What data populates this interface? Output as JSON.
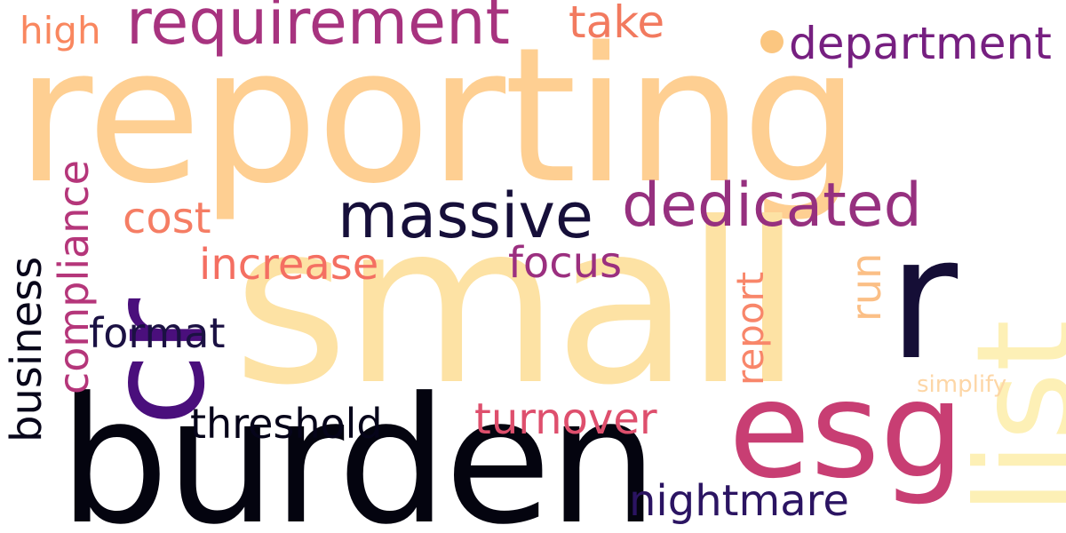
{
  "words": [
    {
      "key": "reporting",
      "text": "reporting",
      "color": "#fecf92"
    },
    {
      "key": "small",
      "text": "small",
      "color": "#fde2a4"
    },
    {
      "key": "burden",
      "text": "burden",
      "color": "#04040f"
    },
    {
      "key": "cr",
      "text": "cr",
      "color": "#4a0f7c"
    },
    {
      "key": "r",
      "text": "r",
      "color": "#150e36"
    },
    {
      "key": "esg",
      "text": "esg",
      "color": "#c83e73"
    },
    {
      "key": "list",
      "text": "list",
      "color": "#fdf0b6"
    },
    {
      "key": "requirement",
      "text": "requirement",
      "color": "#a7337f"
    },
    {
      "key": "massive",
      "text": "massive",
      "color": "#160f3a"
    },
    {
      "key": "dedicated",
      "text": "dedicated",
      "color": "#96307f"
    },
    {
      "key": "department",
      "text": "department",
      "color": "#761f80"
    },
    {
      "key": "take",
      "text": "take",
      "color": "#f27a5f"
    },
    {
      "key": "high",
      "text": "high",
      "color": "#f9875f"
    },
    {
      "key": "cost",
      "text": "cost",
      "color": "#f57d64"
    },
    {
      "key": "increase",
      "text": "increase",
      "color": "#f46f62"
    },
    {
      "key": "focus",
      "text": "focus",
      "color": "#9b2f7f"
    },
    {
      "key": "compliance",
      "text": "compliance",
      "color": "#b5367a"
    },
    {
      "key": "business",
      "text": "business",
      "color": "#08061a"
    },
    {
      "key": "format",
      "text": "format",
      "color": "#1b1143"
    },
    {
      "key": "report",
      "text": "report",
      "color": "#f8866a"
    },
    {
      "key": "run",
      "text": "run",
      "color": "#fbbf86"
    },
    {
      "key": "threshold",
      "text": "threshold",
      "color": "#06041a"
    },
    {
      "key": "turnover",
      "text": "turnover",
      "color": "#de4f6d"
    },
    {
      "key": "nightmare",
      "text": "nightmare",
      "color": "#2b1462"
    },
    {
      "key": "simplify",
      "text": "simplify",
      "color": "#fdd6a6"
    },
    {
      "key": "dot",
      "text": "",
      "color": "#fbc680"
    }
  ]
}
